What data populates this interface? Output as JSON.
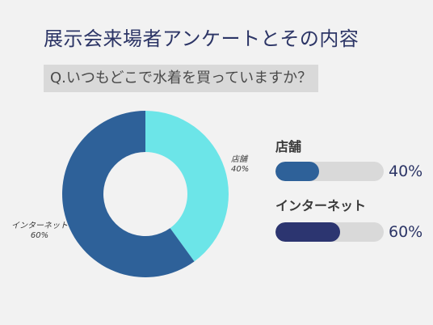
{
  "title": "展示会来場者アンケートとその内容",
  "question": "Q.いつもどこで水着を買っていますか？",
  "chart_data": {
    "type": "pie",
    "donut": true,
    "slices": [
      {
        "label": "店舗",
        "value": 40,
        "display": "40%",
        "color": "#6ce5e8"
      },
      {
        "label": "インターネット",
        "value": 60,
        "display": "60%",
        "color": "#2e6199"
      }
    ]
  },
  "stats": [
    {
      "label": "店舗",
      "value": 40,
      "display": "40%",
      "color": "#2e6199"
    },
    {
      "label": "インターネット",
      "value": 60,
      "display": "60%",
      "color": "#2c3570"
    }
  ]
}
